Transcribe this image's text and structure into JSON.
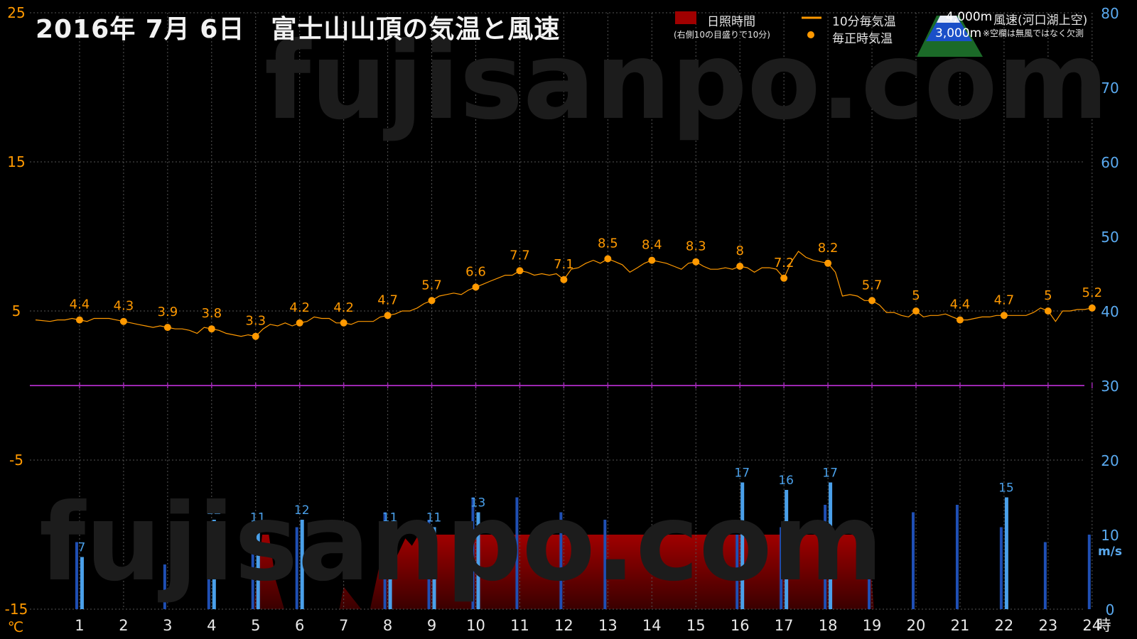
{
  "header": {
    "title": "2016年  7月  6日　富士山山頂の気温と風速"
  },
  "watermark": "fujisanpo.com",
  "legend": {
    "sunshine_label": "日照時間",
    "sunshine_note": "(右側10の目盛りで10分)",
    "temp10_label": "10分毎気温",
    "hourly_label": "毎正時気温",
    "alt_4000": "4,000m",
    "alt_3000": "3,000m",
    "wind_label": "風速(河口湖上空)",
    "wind_note": "※空欄は無風ではなく欠測"
  },
  "colors": {
    "temperature": "#ff9900",
    "wind_4000": "#1f4fb4",
    "wind_3000": "#4aa0ea",
    "sunshine": "#a00000",
    "zero_line": "#9c27b0",
    "grid": "#555555",
    "left_axis": "#ff9900",
    "right_axis": "#5aaaf0"
  },
  "chart_data": {
    "type": "line",
    "x_unit": "時",
    "y_left_unit": "℃",
    "y_right_unit": "m/s",
    "ylim_left": [
      -15,
      25
    ],
    "ylim_right": [
      0,
      80
    ],
    "yticks_left": [
      -15,
      -5,
      5,
      15,
      25
    ],
    "yticks_right": [
      0,
      10,
      20,
      30,
      40,
      50,
      60,
      70,
      80
    ],
    "xticks": [
      1,
      2,
      3,
      4,
      5,
      6,
      7,
      8,
      9,
      10,
      11,
      12,
      13,
      14,
      15,
      16,
      17,
      18,
      19,
      20,
      21,
      22,
      23,
      24
    ],
    "grid": true,
    "hourly_temperature": [
      {
        "x": 1,
        "y": 4.4
      },
      {
        "x": 2,
        "y": 4.3
      },
      {
        "x": 3,
        "y": 3.9
      },
      {
        "x": 4,
        "y": 3.8
      },
      {
        "x": 5,
        "y": 3.3
      },
      {
        "x": 6,
        "y": 4.2
      },
      {
        "x": 7,
        "y": 4.2
      },
      {
        "x": 8,
        "y": 4.7
      },
      {
        "x": 9,
        "y": 5.7
      },
      {
        "x": 10,
        "y": 6.6
      },
      {
        "x": 11,
        "y": 7.7
      },
      {
        "x": 12,
        "y": 7.1
      },
      {
        "x": 13,
        "y": 8.5
      },
      {
        "x": 14,
        "y": 8.4
      },
      {
        "x": 15,
        "y": 8.3
      },
      {
        "x": 16,
        "y": 8
      },
      {
        "x": 17,
        "y": 7.2
      },
      {
        "x": 18,
        "y": 8.2
      },
      {
        "x": 19,
        "y": 5.7
      },
      {
        "x": 20,
        "y": 5
      },
      {
        "x": 21,
        "y": 4.4
      },
      {
        "x": 22,
        "y": 4.7
      },
      {
        "x": 23,
        "y": 5
      },
      {
        "x": 24,
        "y": 5.2
      }
    ],
    "temperature_10min": [
      [
        0.0,
        4.4
      ],
      [
        0.33,
        4.3
      ],
      [
        0.5,
        4.4
      ],
      [
        0.67,
        4.4
      ],
      [
        0.83,
        4.5
      ],
      [
        1.0,
        4.4
      ],
      [
        1.17,
        4.3
      ],
      [
        1.33,
        4.5
      ],
      [
        1.5,
        4.5
      ],
      [
        1.67,
        4.5
      ],
      [
        1.83,
        4.4
      ],
      [
        2.0,
        4.3
      ],
      [
        2.17,
        4.2
      ],
      [
        2.33,
        4.1
      ],
      [
        2.5,
        4.0
      ],
      [
        2.67,
        3.9
      ],
      [
        2.83,
        4.0
      ],
      [
        3.0,
        3.9
      ],
      [
        3.17,
        3.8
      ],
      [
        3.33,
        3.8
      ],
      [
        3.5,
        3.7
      ],
      [
        3.67,
        3.5
      ],
      [
        3.83,
        3.9
      ],
      [
        4.0,
        3.8
      ],
      [
        4.17,
        3.7
      ],
      [
        4.33,
        3.5
      ],
      [
        4.5,
        3.4
      ],
      [
        4.67,
        3.3
      ],
      [
        4.83,
        3.4
      ],
      [
        5.0,
        3.3
      ],
      [
        5.17,
        3.8
      ],
      [
        5.33,
        4.1
      ],
      [
        5.5,
        4.0
      ],
      [
        5.67,
        4.2
      ],
      [
        5.83,
        4.0
      ],
      [
        6.0,
        4.2
      ],
      [
        6.17,
        4.3
      ],
      [
        6.33,
        4.6
      ],
      [
        6.5,
        4.5
      ],
      [
        6.67,
        4.5
      ],
      [
        6.83,
        4.2
      ],
      [
        7.0,
        4.2
      ],
      [
        7.17,
        4.1
      ],
      [
        7.33,
        4.3
      ],
      [
        7.5,
        4.3
      ],
      [
        7.67,
        4.3
      ],
      [
        7.83,
        4.6
      ],
      [
        8.0,
        4.7
      ],
      [
        8.17,
        4.8
      ],
      [
        8.33,
        5.0
      ],
      [
        8.5,
        5.0
      ],
      [
        8.67,
        5.2
      ],
      [
        8.83,
        5.5
      ],
      [
        9.0,
        5.7
      ],
      [
        9.17,
        6.0
      ],
      [
        9.33,
        6.1
      ],
      [
        9.5,
        6.2
      ],
      [
        9.67,
        6.1
      ],
      [
        9.83,
        6.4
      ],
      [
        10.0,
        6.6
      ],
      [
        10.17,
        6.8
      ],
      [
        10.33,
        7.0
      ],
      [
        10.5,
        7.2
      ],
      [
        10.67,
        7.4
      ],
      [
        10.83,
        7.4
      ],
      [
        11.0,
        7.7
      ],
      [
        11.17,
        7.6
      ],
      [
        11.33,
        7.4
      ],
      [
        11.5,
        7.5
      ],
      [
        11.67,
        7.4
      ],
      [
        11.83,
        7.5
      ],
      [
        12.0,
        7.1
      ],
      [
        12.17,
        7.8
      ],
      [
        12.33,
        7.9
      ],
      [
        12.5,
        8.2
      ],
      [
        12.67,
        8.4
      ],
      [
        12.83,
        8.2
      ],
      [
        13.0,
        8.5
      ],
      [
        13.17,
        8.3
      ],
      [
        13.33,
        8.1
      ],
      [
        13.5,
        7.6
      ],
      [
        13.67,
        7.9
      ],
      [
        13.83,
        8.2
      ],
      [
        14.0,
        8.4
      ],
      [
        14.17,
        8.3
      ],
      [
        14.33,
        8.2
      ],
      [
        14.5,
        8.0
      ],
      [
        14.67,
        7.8
      ],
      [
        14.83,
        8.2
      ],
      [
        15.0,
        8.3
      ],
      [
        15.17,
        8.0
      ],
      [
        15.33,
        7.8
      ],
      [
        15.5,
        7.8
      ],
      [
        15.67,
        7.9
      ],
      [
        15.83,
        7.8
      ],
      [
        16.0,
        8.0
      ],
      [
        16.17,
        7.9
      ],
      [
        16.33,
        7.6
      ],
      [
        16.5,
        7.9
      ],
      [
        16.67,
        7.9
      ],
      [
        16.83,
        7.8
      ],
      [
        17.0,
        7.2
      ],
      [
        17.17,
        8.3
      ],
      [
        17.33,
        9.0
      ],
      [
        17.5,
        8.6
      ],
      [
        17.67,
        8.4
      ],
      [
        17.83,
        8.3
      ],
      [
        18.0,
        8.2
      ],
      [
        18.17,
        7.6
      ],
      [
        18.33,
        6.0
      ],
      [
        18.5,
        6.1
      ],
      [
        18.67,
        6.0
      ],
      [
        18.83,
        5.7
      ],
      [
        19.0,
        5.7
      ],
      [
        19.17,
        5.4
      ],
      [
        19.33,
        4.9
      ],
      [
        19.5,
        4.9
      ],
      [
        19.67,
        4.7
      ],
      [
        19.83,
        4.6
      ],
      [
        20.0,
        5.0
      ],
      [
        20.17,
        4.6
      ],
      [
        20.33,
        4.7
      ],
      [
        20.5,
        4.7
      ],
      [
        20.67,
        4.8
      ],
      [
        20.83,
        4.6
      ],
      [
        21.0,
        4.4
      ],
      [
        21.17,
        4.4
      ],
      [
        21.33,
        4.5
      ],
      [
        21.5,
        4.6
      ],
      [
        21.67,
        4.6
      ],
      [
        21.83,
        4.7
      ],
      [
        22.0,
        4.7
      ],
      [
        22.17,
        4.7
      ],
      [
        22.33,
        4.7
      ],
      [
        22.5,
        4.7
      ],
      [
        22.67,
        4.9
      ],
      [
        22.83,
        5.2
      ],
      [
        23.0,
        5.0
      ],
      [
        23.17,
        4.3
      ],
      [
        23.33,
        5.0
      ],
      [
        23.5,
        5.0
      ],
      [
        23.67,
        5.1
      ],
      [
        23.83,
        5.1
      ],
      [
        24.0,
        5.2
      ]
    ],
    "wind_3000m": [
      {
        "x": 1,
        "v": 7,
        "label": "7"
      },
      {
        "x": 4,
        "v": 12,
        "label": "12"
      },
      {
        "x": 5,
        "v": 11,
        "label": "11"
      },
      {
        "x": 6,
        "v": 12,
        "label": "12"
      },
      {
        "x": 8,
        "v": 11,
        "label": "11"
      },
      {
        "x": 9,
        "v": 11,
        "label": "11"
      },
      {
        "x": 10,
        "v": 13,
        "label": "13"
      },
      {
        "x": 16,
        "v": 17,
        "label": "17"
      },
      {
        "x": 17,
        "v": 16,
        "label": "16"
      },
      {
        "x": 18,
        "v": 17,
        "label": "17"
      },
      {
        "x": 22,
        "v": 15,
        "label": "15"
      }
    ],
    "wind_4000m": [
      {
        "x": 1,
        "v": 9
      },
      {
        "x": 3,
        "v": 6
      },
      {
        "x": 4,
        "v": 11
      },
      {
        "x": 5,
        "v": 11
      },
      {
        "x": 6,
        "v": 11
      },
      {
        "x": 8,
        "v": 13
      },
      {
        "x": 9,
        "v": 12
      },
      {
        "x": 10,
        "v": 15
      },
      {
        "x": 11,
        "v": 15
      },
      {
        "x": 12,
        "v": 13
      },
      {
        "x": 13,
        "v": 12
      },
      {
        "x": 16,
        "v": 10
      },
      {
        "x": 17,
        "v": 11
      },
      {
        "x": 18,
        "v": 14
      },
      {
        "x": 19,
        "v": 11
      },
      {
        "x": 20,
        "v": 13
      },
      {
        "x": 21,
        "v": 14
      },
      {
        "x": 22,
        "v": 11
      },
      {
        "x": 23,
        "v": 9
      },
      {
        "x": 24,
        "v": 10
      }
    ],
    "sunshine_minutes": [
      [
        4.95,
        0
      ],
      [
        5.15,
        10
      ],
      [
        5.3,
        10
      ],
      [
        5.45,
        4
      ],
      [
        5.65,
        0
      ],
      [
        6.9,
        0
      ],
      [
        7.0,
        3
      ],
      [
        7.2,
        1.5
      ],
      [
        7.4,
        0
      ],
      [
        7.6,
        0
      ],
      [
        7.8,
        5.5
      ],
      [
        8.0,
        8
      ],
      [
        8.2,
        7
      ],
      [
        8.4,
        9.5
      ],
      [
        8.55,
        8.5
      ],
      [
        8.7,
        10
      ],
      [
        8.8,
        9
      ],
      [
        8.95,
        10
      ],
      [
        18.9,
        10
      ],
      [
        19.05,
        0
      ]
    ]
  }
}
